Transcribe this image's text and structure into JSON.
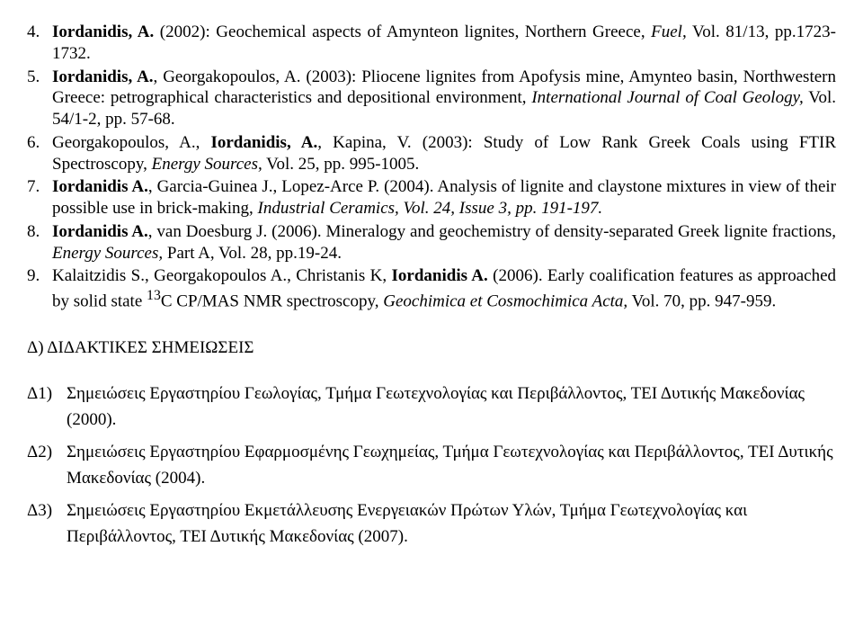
{
  "refs": [
    {
      "num": "4.",
      "parts": [
        {
          "t": "Iordanidis, A.",
          "b": true
        },
        {
          "t": " (2002): Geochemical aspects of Amynteon lignites, Northern Greece, "
        },
        {
          "t": "Fuel,",
          "i": true
        },
        {
          "t": " Vol. 81/13, pp.1723-1732."
        }
      ]
    },
    {
      "num": "5.",
      "parts": [
        {
          "t": "Iordanidis, A.",
          "b": true
        },
        {
          "t": ", Georgakopoulos, A. (2003): Pliocene lignites from Apofysis mine, Amynteo basin, Northwestern Greece: petrographical characteristics and depositional environment, "
        },
        {
          "t": "International Journal of Coal Geology,",
          "i": true
        },
        {
          "t": " Vol. 54/1-2, pp. 57-68."
        }
      ]
    },
    {
      "num": "6.",
      "parts": [
        {
          "t": "Georgakopoulos, A., "
        },
        {
          "t": "Iordanidis, A.",
          "b": true
        },
        {
          "t": ", Kapina, V. (2003): Study of Low Rank Greek Coals using FTIR Spectroscopy, "
        },
        {
          "t": "Energy Sources,",
          "i": true
        },
        {
          "t": " Vol. 25, pp. 995-1005."
        }
      ]
    },
    {
      "num": "7.",
      "parts": [
        {
          "t": "Iordanidis A.",
          "b": true
        },
        {
          "t": ", Garcia-Guinea J., Lopez-Arce P. (2004). Analysis of lignite and claystone mixtures in view of their possible use in brick-making, "
        },
        {
          "t": "Industrial Ceramics, Vol. 24, Issue 3, pp. 191-197.",
          "i": true
        }
      ]
    },
    {
      "num": "8.",
      "parts": [
        {
          "t": "Iordanidis A.",
          "b": true
        },
        {
          "t": ", van Doesburg J. (2006). Mineralogy and geochemistry of density-separated Greek lignite fractions, "
        },
        {
          "t": "Energy Sources,",
          "i": true
        },
        {
          "t": " Part A, Vol. 28, pp.19-24."
        }
      ]
    },
    {
      "num": "9.",
      "parts": [
        {
          "t": "Kalaitzidis S., Georgakopoulos A., Christanis K, "
        },
        {
          "t": "Iordanidis A.",
          "b": true
        },
        {
          "t": " (2006). Early coalification features as approached by solid state "
        },
        {
          "t": "13",
          "sup": true
        },
        {
          "t": "C CP/MAS NMR spectroscopy, "
        },
        {
          "t": "Geochimica et Cosmochimica Acta,",
          "i": true
        },
        {
          "t": " Vol. 70, pp. 947-959."
        }
      ]
    }
  ],
  "section_title": "Δ) ΔΙΔΑΚΤΙΚΕΣ ΣΗΜΕΙΩΣΕΙΣ",
  "notes": [
    {
      "num": "Δ1)",
      "text": "Σημειώσεις Εργαστηρίου Γεωλογίας, Τμήμα Γεωτεχνολογίας και Περιβάλλοντος, ΤΕΙ Δυτικής Μακεδονίας (2000)."
    },
    {
      "num": "Δ2)",
      "text": "Σημειώσεις Εργαστηρίου Εφαρμοσμένης Γεωχημείας, Τμήμα Γεωτεχνολογίας και Περιβάλλοντος, ΤΕΙ Δυτικής Μακεδονίας (2004)."
    },
    {
      "num": "Δ3)",
      "text": "Σημειώσεις Εργαστηρίου Εκμετάλλευσης Ενεργειακών Πρώτων Υλών, Τμήμα Γεωτεχνολογίας και Περιβάλλοντος, ΤΕΙ Δυτικής Μακεδονίας (2007)."
    }
  ]
}
